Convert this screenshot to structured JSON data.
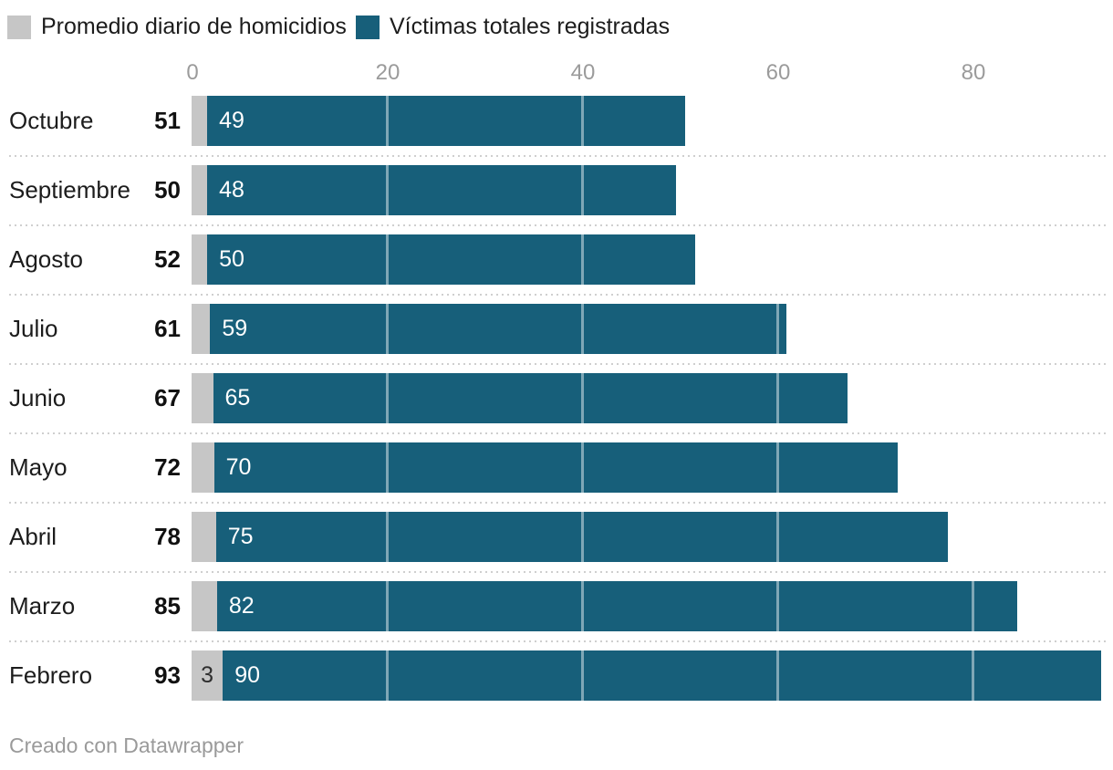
{
  "colors": {
    "promedio": "#c6c6c6",
    "victimas": "#175f7a",
    "axis_label": "#9b9b9b",
    "text": "#1c1c1c",
    "bar_label_light": "#ffffff",
    "bar_label_dark": "#2e2e2e",
    "separator": "#cfcfcf",
    "gridline": "rgba(255,255,255,0.45)",
    "footer": "#9a9a9a"
  },
  "legend": {
    "items": [
      {
        "id": "promedio",
        "label": "Promedio diario de homicidios"
      },
      {
        "id": "victimas",
        "label": "Víctimas totales registradas"
      }
    ]
  },
  "chart_data": {
    "type": "bar",
    "variant": "horizontal-stacked",
    "legend_position": "top-left",
    "grid": true,
    "x_ticks": [
      0,
      20,
      40,
      60,
      80
    ],
    "xlim": [
      0,
      94.4
    ],
    "categories": [
      "Octubre",
      "Septiembre",
      "Agosto",
      "Julio",
      "Junio",
      "Mayo",
      "Abril",
      "Marzo",
      "Febrero"
    ],
    "row_total_labels": [
      "51",
      "50",
      "52",
      "61",
      "67",
      "72",
      "78",
      "85",
      "93"
    ],
    "series": [
      {
        "name": "Promedio diario de homicidios",
        "color_key": "promedio",
        "values": [
          1.6,
          1.6,
          1.6,
          1.9,
          2.2,
          2.3,
          2.5,
          2.6,
          3.2
        ],
        "bar_labels": [
          "",
          "",
          "",
          "",
          "",
          "",
          "",
          "",
          "3"
        ]
      },
      {
        "name": "Víctimas totales registradas",
        "color_key": "victimas",
        "values": [
          49,
          48,
          50,
          59,
          65,
          70,
          75,
          82,
          90
        ],
        "bar_labels": [
          "49",
          "48",
          "50",
          "59",
          "65",
          "70",
          "75",
          "82",
          "90"
        ]
      }
    ]
  },
  "footer": {
    "credit": "Creado con Datawrapper"
  }
}
